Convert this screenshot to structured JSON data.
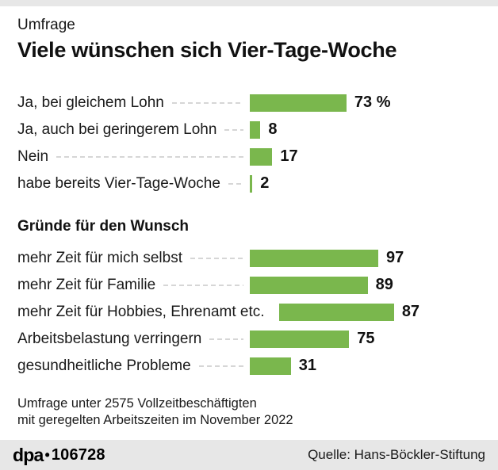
{
  "colors": {
    "bar_green": "#7ab74d",
    "strip_gray": "#e7e7e7",
    "leader_gray": "#d6d6d6",
    "text": "#161616"
  },
  "header": {
    "kicker": "Umfrage",
    "title": "Viele wünschen sich Vier-Tage-Woche"
  },
  "chart_data": [
    {
      "type": "bar",
      "orientation": "horizontal",
      "title": "",
      "categories": [
        "Ja, bei gleichem Lohn",
        "Ja, auch bei geringerem Lohn",
        "Nein",
        "habe bereits Vier-Tage-Woche"
      ],
      "values": [
        73,
        8,
        17,
        2
      ],
      "value_labels": [
        "73 %",
        "8",
        "17",
        "2"
      ],
      "unit": "%",
      "xlim": [
        0,
        100
      ],
      "grid": false,
      "legend": false,
      "leader_lines": "dashed"
    },
    {
      "type": "bar",
      "orientation": "horizontal",
      "title": "Gründe für den Wunsch",
      "categories": [
        "mehr Zeit für mich selbst",
        "mehr Zeit für Familie",
        "mehr Zeit für Hobbies, Ehrenamt etc.",
        "Arbeitsbelastung verringern",
        "gesundheitliche Probleme"
      ],
      "values": [
        97,
        89,
        87,
        75,
        31
      ],
      "value_labels": [
        "97",
        "89",
        "87",
        "75",
        "31"
      ],
      "unit": "%",
      "xlim": [
        0,
        100
      ],
      "grid": false,
      "legend": false,
      "leader_lines": "dashed"
    }
  ],
  "footnote": {
    "line1": "Umfrage unter 2575 Vollzeitbeschäftigten",
    "line2": "mit geregelten Arbeitszeiten im November 2022"
  },
  "footer": {
    "brand": "dpa",
    "separator": "•",
    "id": "106728",
    "source": "Quelle: Hans-Böckler-Stiftung"
  }
}
